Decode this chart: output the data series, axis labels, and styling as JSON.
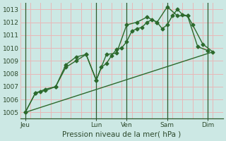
{
  "background_color": "#cce8e4",
  "grid_color_h": "#e8b8b8",
  "grid_color_v": "#e8b8b8",
  "line_color": "#2d6a2d",
  "title": "Pression niveau de la mer( hPa )",
  "ylim": [
    1004.5,
    1013.5
  ],
  "yticks": [
    1005,
    1006,
    1007,
    1008,
    1009,
    1010,
    1011,
    1012,
    1013
  ],
  "xlim": [
    0,
    20
  ],
  "xtick_labels": [
    "Jeu",
    "Lun",
    "Ven",
    "Sam",
    "Dim"
  ],
  "xtick_positions": [
    0.5,
    7.5,
    10.5,
    14.5,
    18.5
  ],
  "vline_positions": [
    0.5,
    7.5,
    10.5,
    14.5,
    18.5
  ],
  "series1_x": [
    0.5,
    1.5,
    2.0,
    2.5,
    3.5,
    4.5,
    5.5,
    6.5,
    7.5,
    8.0,
    8.5,
    9.0,
    9.5,
    10.0,
    10.5,
    11.0,
    11.5,
    12.0,
    12.5,
    13.0,
    13.5,
    14.0,
    14.5,
    15.0,
    15.5,
    16.0,
    16.5,
    17.0,
    18.0,
    19.0
  ],
  "series1_y": [
    1005.0,
    1006.5,
    1006.6,
    1006.7,
    1007.0,
    1008.7,
    1009.3,
    1009.5,
    1007.5,
    1008.5,
    1008.8,
    1009.4,
    1009.9,
    1010.0,
    1010.5,
    1011.3,
    1011.5,
    1011.6,
    1012.0,
    1012.2,
    1012.0,
    1011.5,
    1011.8,
    1012.5,
    1013.0,
    1012.6,
    1012.5,
    1011.8,
    1010.3,
    1009.7
  ],
  "series2_x": [
    0.5,
    1.5,
    2.5,
    3.5,
    4.5,
    5.5,
    6.5,
    7.5,
    8.5,
    9.5,
    10.5,
    11.5,
    12.5,
    13.5,
    14.5,
    15.5,
    16.5,
    17.5,
    18.5
  ],
  "series2_y": [
    1005.0,
    1006.5,
    1006.8,
    1007.0,
    1008.5,
    1009.0,
    1009.5,
    1007.5,
    1009.5,
    1009.6,
    1011.8,
    1012.0,
    1012.4,
    1012.0,
    1013.2,
    1012.5,
    1012.5,
    1010.1,
    1009.8
  ],
  "series3_x": [
    0.5,
    19.0
  ],
  "series3_y": [
    1005.0,
    1009.7
  ],
  "marker": "D",
  "marker_size": 2.5,
  "line_width": 1.0
}
